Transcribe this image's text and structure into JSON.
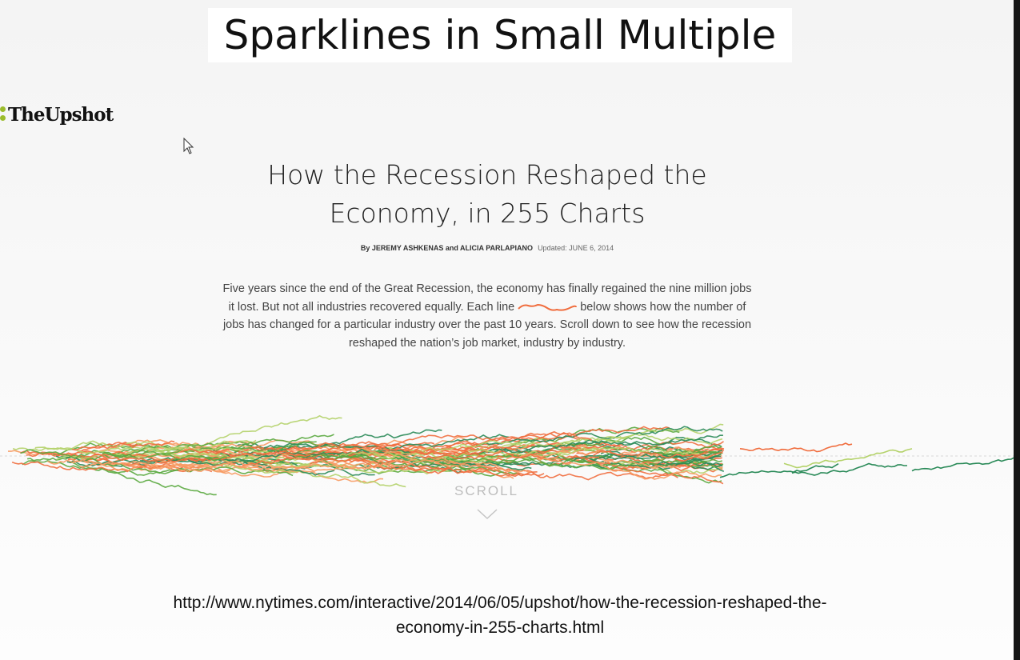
{
  "slide": {
    "title": "Sparklines in Small Multiple",
    "url_line1": "http://www.nytimes.com/interactive/2014/06/05/upshot/how-the-recession-reshaped-the-",
    "url_line2": "economy-in-255-charts.html"
  },
  "article": {
    "brand": "TheUpshot",
    "headline_line1": "How the Recession Reshaped the",
    "headline_line2": "Economy, in 255 Charts",
    "byline": "By JEREMY ASHKENAS and ALICIA PARLAPIANO",
    "updated": "Updated: JUNE 6, 2014",
    "intro_lines": [
      "Five years since the end of the Great Recession, the economy has finally regained the nine million jobs",
      "it lost. But not all industries recovered equally. Each line",
      "below shows how the number of",
      "jobs has changed for a particular industry over the past 10 years. Scroll down to see how the recession",
      "reshaped the nation’s job market, industry by  industry."
    ],
    "scroll_label": "SCROLL"
  },
  "icons": {
    "brand": "brand-dots-icon",
    "cursor": "mouse-cursor-icon",
    "scroll": "chevron-down-icon"
  },
  "colors": {
    "gain_dark": "#2a8a58",
    "gain_mid": "#5aa83f",
    "gain_light": "#b4d26a",
    "loss": "#f06d3e",
    "loss_light": "#f79a62",
    "brand_accent": "#9bbc2b"
  }
}
